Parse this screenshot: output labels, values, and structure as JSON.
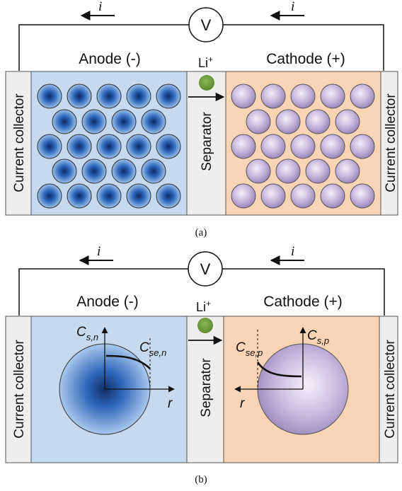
{
  "panel_a": {
    "caption": "(a)",
    "current_symbol": "i",
    "meter": "V",
    "anode_label": "Anode (-)",
    "cathode_label": "Cathode (+)",
    "ion_label": "Li",
    "ion_charge": "+",
    "separator_label": "Separator",
    "collector_left": "Current collector",
    "collector_right": "Current collector"
  },
  "panel_b": {
    "caption": "(b)",
    "current_symbol": "i",
    "meter": "V",
    "anode_label": "Anode (-)",
    "cathode_label": "Cathode (+)",
    "ion_label": "Li",
    "ion_charge": "+",
    "separator_label": "Separator",
    "collector_left": "Current collector",
    "collector_right": "Current collector",
    "anode_axis_main": "C",
    "anode_axis_sub": "s,n",
    "anode_surface_main": "C",
    "anode_surface_sub": "se,n",
    "anode_radius": "r",
    "cathode_axis_main": "C",
    "cathode_axis_sub": "s,p",
    "cathode_surface_main": "C",
    "cathode_surface_sub": "se,p",
    "cathode_radius": "r"
  },
  "colors": {
    "anode_region": "#c5d9ef",
    "cathode_region": "#fbd3b5",
    "collector": "#eeeeee",
    "separator": "#eeeeee",
    "anode_particle": "#2e66b8",
    "cathode_particle": "#c4b2d8",
    "li_ion": "#6e9a3c"
  }
}
